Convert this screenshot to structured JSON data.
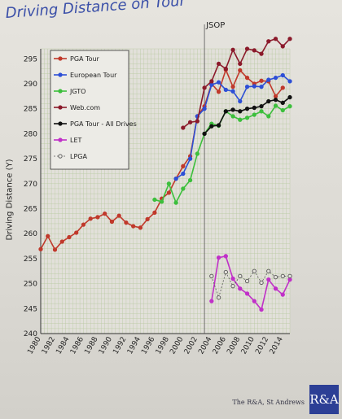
{
  "title": "Driving Distance on Tour",
  "footer": "The R&A, St Andrews",
  "logo_text": "R&A",
  "chart_data": {
    "type": "line",
    "title": "Driving Distance on Tour",
    "ylabel": "Driving Distance (Y)",
    "xlabel": "",
    "ylim": [
      240,
      297
    ],
    "xlim": [
      1980,
      2015
    ],
    "yticks": [
      240,
      245,
      250,
      255,
      260,
      265,
      270,
      275,
      280,
      285,
      290,
      295
    ],
    "xticks": [
      1980,
      1982,
      1984,
      1986,
      1988,
      1990,
      1992,
      1994,
      1996,
      1998,
      2000,
      2002,
      2004,
      2006,
      2008,
      2010,
      2012,
      2014
    ],
    "annotation": {
      "text": "JSOP",
      "x": 2003
    },
    "legend_position": "top-left",
    "series": [
      {
        "name": "PGA Tour",
        "color": "#c0392b",
        "dashed": false,
        "hollow": false,
        "points": [
          [
            1980,
            256.9
          ],
          [
            1981,
            259.5
          ],
          [
            1982,
            256.8
          ],
          [
            1983,
            258.4
          ],
          [
            1984,
            259.3
          ],
          [
            1985,
            260.2
          ],
          [
            1986,
            261.8
          ],
          [
            1987,
            263.0
          ],
          [
            1988,
            263.3
          ],
          [
            1989,
            264.0
          ],
          [
            1990,
            262.4
          ],
          [
            1991,
            263.6
          ],
          [
            1992,
            262.2
          ],
          [
            1993,
            261.5
          ],
          [
            1994,
            261.2
          ],
          [
            1995,
            262.9
          ],
          [
            1996,
            264.2
          ],
          [
            1997,
            267.0
          ],
          [
            1998,
            268.2
          ],
          [
            1999,
            271.0
          ],
          [
            2000,
            273.5
          ],
          [
            2001,
            275.5
          ],
          [
            2002,
            283.5
          ],
          [
            2003,
            285.5
          ],
          [
            2004,
            290.0
          ],
          [
            2005,
            288.4
          ],
          [
            2006,
            292.8
          ],
          [
            2007,
            289.4
          ],
          [
            2008,
            292.7
          ],
          [
            2009,
            291.2
          ],
          [
            2010,
            290.0
          ],
          [
            2011,
            290.6
          ],
          [
            2012,
            290.5
          ],
          [
            2013,
            287.5
          ],
          [
            2014,
            289.2
          ]
        ]
      },
      {
        "name": "European Tour",
        "color": "#2d4fd6",
        "dashed": false,
        "hollow": false,
        "points": [
          [
            1999,
            271.0
          ],
          [
            2000,
            272.0
          ],
          [
            2001,
            275.0
          ],
          [
            2002,
            283.5
          ],
          [
            2003,
            285.0
          ],
          [
            2004,
            289.8
          ],
          [
            2005,
            290.3
          ],
          [
            2006,
            288.8
          ],
          [
            2007,
            288.5
          ],
          [
            2008,
            286.5
          ],
          [
            2009,
            289.4
          ],
          [
            2010,
            289.5
          ],
          [
            2011,
            289.4
          ],
          [
            2012,
            290.8
          ],
          [
            2013,
            291.2
          ],
          [
            2014,
            291.7
          ],
          [
            2015,
            290.5
          ]
        ]
      },
      {
        "name": "JGTO",
        "color": "#3cbf3c",
        "dashed": false,
        "hollow": false,
        "points": [
          [
            1996,
            266.8
          ],
          [
            1997,
            266.4
          ],
          [
            1998,
            270.0
          ],
          [
            1999,
            266.2
          ],
          [
            2000,
            269.0
          ],
          [
            2001,
            270.7
          ],
          [
            2002,
            276.0
          ],
          [
            2003,
            280.0
          ],
          [
            2004,
            282.0
          ],
          [
            2005,
            281.6
          ],
          [
            2006,
            284.5
          ],
          [
            2007,
            283.5
          ],
          [
            2008,
            282.8
          ],
          [
            2009,
            283.2
          ],
          [
            2010,
            283.8
          ],
          [
            2011,
            284.5
          ],
          [
            2012,
            283.5
          ],
          [
            2013,
            285.6
          ],
          [
            2014,
            284.7
          ],
          [
            2015,
            285.5
          ]
        ]
      },
      {
        "name": "Web.com",
        "color": "#8b1a2b",
        "dashed": false,
        "hollow": false,
        "points": [
          [
            2000,
            281.2
          ],
          [
            2001,
            282.3
          ],
          [
            2002,
            282.5
          ],
          [
            2003,
            289.2
          ],
          [
            2004,
            290.5
          ],
          [
            2005,
            294.0
          ],
          [
            2006,
            293.0
          ],
          [
            2007,
            296.8
          ],
          [
            2008,
            294.0
          ],
          [
            2009,
            297.0
          ],
          [
            2010,
            296.7
          ],
          [
            2011,
            296.0
          ],
          [
            2012,
            298.5
          ],
          [
            2013,
            299.0
          ],
          [
            2014,
            297.5
          ],
          [
            2015,
            299.0
          ]
        ]
      },
      {
        "name": "PGA Tour - All Drives",
        "color": "#111111",
        "dashed": false,
        "hollow": false,
        "points": [
          [
            2003,
            280.0
          ],
          [
            2004,
            281.5
          ],
          [
            2005,
            281.7
          ],
          [
            2006,
            284.5
          ],
          [
            2007,
            284.8
          ],
          [
            2008,
            284.5
          ],
          [
            2009,
            285.0
          ],
          [
            2010,
            285.2
          ],
          [
            2011,
            285.5
          ],
          [
            2012,
            286.5
          ],
          [
            2013,
            286.8
          ],
          [
            2014,
            286.2
          ],
          [
            2015,
            287.3
          ]
        ]
      },
      {
        "name": "LET",
        "color": "#c030c8",
        "dashed": false,
        "hollow": false,
        "points": [
          [
            2004,
            246.5
          ],
          [
            2005,
            255.2
          ],
          [
            2006,
            255.5
          ],
          [
            2007,
            251.0
          ],
          [
            2008,
            249.0
          ],
          [
            2009,
            248.0
          ],
          [
            2010,
            246.5
          ],
          [
            2011,
            244.8
          ],
          [
            2012,
            250.8
          ],
          [
            2013,
            249.0
          ],
          [
            2014,
            247.8
          ],
          [
            2015,
            250.8
          ]
        ]
      },
      {
        "name": "LPGA",
        "color": "#555555",
        "dashed": true,
        "hollow": true,
        "points": [
          [
            2004,
            251.5
          ],
          [
            2005,
            247.2
          ],
          [
            2006,
            252.3
          ],
          [
            2007,
            249.5
          ],
          [
            2008,
            251.5
          ],
          [
            2009,
            250.5
          ],
          [
            2010,
            252.5
          ],
          [
            2011,
            250.2
          ],
          [
            2012,
            252.5
          ],
          [
            2013,
            251.3
          ],
          [
            2014,
            251.5
          ],
          [
            2015,
            251.5
          ]
        ]
      }
    ]
  }
}
